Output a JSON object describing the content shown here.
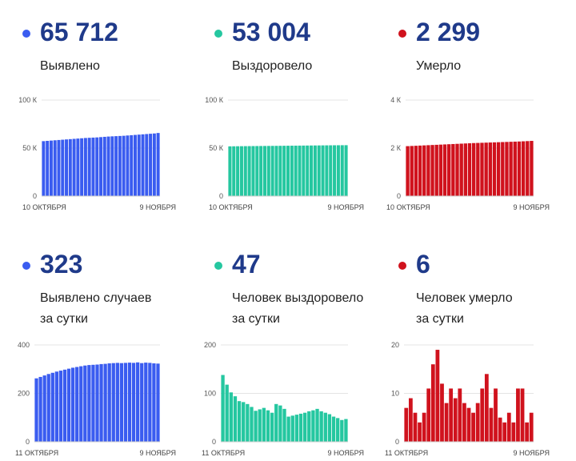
{
  "colors": {
    "confirmed": "#3a5cf0",
    "recovered": "#25c7a0",
    "deaths": "#d0121d",
    "number": "#1f3a8a"
  },
  "panels": [
    {
      "value": "65 712",
      "label_lines": [
        "Выявлено"
      ],
      "color": "confirmed"
    },
    {
      "value": "53 004",
      "label_lines": [
        "Выздоровело"
      ],
      "color": "recovered"
    },
    {
      "value": "2 299",
      "label_lines": [
        "Умерло"
      ],
      "color": "deaths"
    },
    {
      "value": "323",
      "label_lines": [
        "Выявлено случаев",
        "за сутки"
      ],
      "color": "confirmed"
    },
    {
      "value": "47",
      "label_lines": [
        "Человек выздоровело",
        "за сутки"
      ],
      "color": "recovered"
    },
    {
      "value": "6",
      "label_lines": [
        "Человек умерло",
        "за сутки"
      ],
      "color": "deaths"
    }
  ],
  "chart_data": [
    {
      "type": "bar",
      "x_start_label": "10 ОКТЯБРЯ",
      "x_end_label": "9 НОЯБРЯ",
      "ylim": [
        0,
        100000
      ],
      "yticks": [
        "0",
        "50 К",
        "100 К"
      ],
      "ytick_values": [
        0,
        50000,
        100000
      ],
      "grid": true,
      "color": "confirmed",
      "values": [
        57200,
        57500,
        57800,
        58100,
        58400,
        58700,
        59000,
        59300,
        59600,
        59900,
        60200,
        60500,
        60700,
        60900,
        61100,
        61400,
        61700,
        62000,
        62200,
        62400,
        62600,
        62800,
        63100,
        63400,
        63700,
        64000,
        64300,
        64600,
        64900,
        65200,
        65712
      ]
    },
    {
      "type": "bar",
      "x_start_label": "10 ОКТЯБРЯ",
      "x_end_label": "9 НОЯБРЯ",
      "ylim": [
        0,
        100000
      ],
      "yticks": [
        "0",
        "50 К",
        "100 К"
      ],
      "ytick_values": [
        0,
        50000,
        100000
      ],
      "grid": true,
      "color": "recovered",
      "values": [
        51800,
        51850,
        51900,
        51950,
        52000,
        52040,
        52080,
        52120,
        52160,
        52200,
        52240,
        52280,
        52320,
        52360,
        52400,
        52440,
        52480,
        52520,
        52560,
        52600,
        52640,
        52680,
        52720,
        52760,
        52800,
        52840,
        52880,
        52920,
        52950,
        52980,
        53004
      ]
    },
    {
      "type": "bar",
      "x_start_label": "10 ОКТЯБРЯ",
      "x_end_label": "9 НОЯБРЯ",
      "ylim": [
        0,
        4000
      ],
      "yticks": [
        "0",
        "2 К",
        "4 К"
      ],
      "ytick_values": [
        0,
        2000,
        4000
      ],
      "grid": true,
      "color": "deaths",
      "values": [
        2080,
        2088,
        2096,
        2104,
        2112,
        2120,
        2128,
        2136,
        2144,
        2152,
        2160,
        2168,
        2176,
        2184,
        2192,
        2200,
        2208,
        2214,
        2220,
        2226,
        2232,
        2238,
        2244,
        2250,
        2256,
        2262,
        2268,
        2274,
        2282,
        2290,
        2299
      ]
    },
    {
      "type": "bar",
      "x_start_label": "11 ОКТЯБРЯ",
      "x_end_label": "9 НОЯБРЯ",
      "ylim": [
        0,
        400
      ],
      "yticks": [
        "0",
        "200",
        "400"
      ],
      "ytick_values": [
        0,
        200,
        400
      ],
      "grid": true,
      "color": "confirmed",
      "values": [
        262,
        268,
        274,
        280,
        285,
        290,
        294,
        298,
        302,
        306,
        309,
        312,
        315,
        317,
        318,
        319,
        321,
        322,
        324,
        325,
        326,
        325,
        326,
        327,
        326,
        328,
        325,
        327,
        326,
        324,
        323
      ]
    },
    {
      "type": "bar",
      "x_start_label": "11 ОКТЯБРЯ",
      "x_end_label": "9 НОЯБРЯ",
      "ylim": [
        0,
        200
      ],
      "yticks": [
        "0",
        "100",
        "200"
      ],
      "ytick_values": [
        0,
        100,
        200
      ],
      "grid": true,
      "color": "recovered",
      "values": [
        138,
        118,
        102,
        94,
        84,
        82,
        78,
        72,
        64,
        67,
        70,
        65,
        60,
        78,
        75,
        68,
        52,
        54,
        56,
        58,
        60,
        63,
        65,
        68,
        63,
        60,
        57,
        52,
        49,
        45,
        47
      ]
    },
    {
      "type": "bar",
      "x_start_label": "11 ОКТЯБРЯ",
      "x_end_label": "9 НОЯБРЯ",
      "ylim": [
        0,
        20
      ],
      "yticks": [
        "0",
        "10",
        "20"
      ],
      "ytick_values": [
        0,
        10,
        20
      ],
      "grid": true,
      "color": "deaths",
      "values": [
        7,
        9,
        6,
        4,
        6,
        11,
        16,
        19,
        12,
        8,
        11,
        9,
        11,
        8,
        7,
        6,
        8,
        11,
        14,
        7,
        11,
        5,
        4,
        6,
        4,
        11,
        11,
        4,
        6
      ]
    }
  ]
}
